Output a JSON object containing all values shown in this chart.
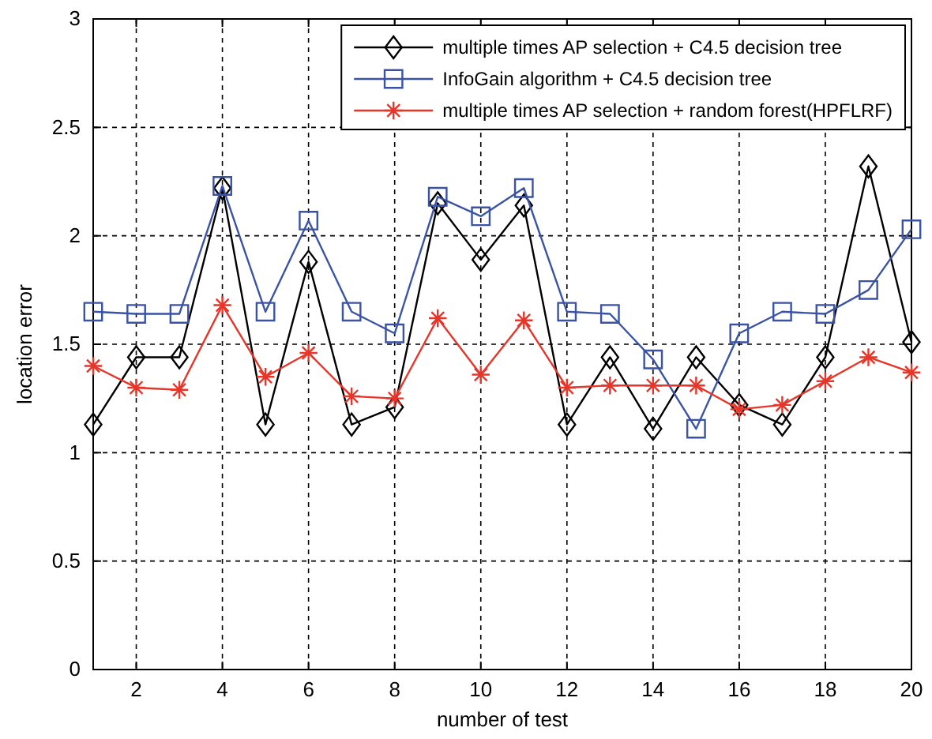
{
  "chart_data": {
    "type": "line",
    "xlabel": "number of test",
    "ylabel": "location error",
    "x": [
      1,
      2,
      3,
      4,
      5,
      6,
      7,
      8,
      9,
      10,
      11,
      12,
      13,
      14,
      15,
      16,
      17,
      18,
      19,
      20
    ],
    "series": [
      {
        "name": "multiple times AP selection + C4.5 decision tree",
        "color": "#000000",
        "marker": "diamond",
        "values": [
          1.13,
          1.44,
          1.44,
          2.22,
          1.13,
          1.88,
          1.13,
          1.21,
          2.15,
          1.89,
          2.14,
          1.13,
          1.44,
          1.11,
          1.44,
          1.22,
          1.13,
          1.44,
          2.32,
          1.51
        ]
      },
      {
        "name": "InfoGain algorithm + C4.5 decision tree",
        "color": "#3a53a4",
        "marker": "square",
        "values": [
          1.65,
          1.64,
          1.64,
          2.23,
          1.65,
          2.07,
          1.65,
          1.55,
          2.18,
          2.09,
          2.22,
          1.65,
          1.64,
          1.43,
          1.11,
          1.55,
          1.65,
          1.64,
          1.75,
          2.03
        ]
      },
      {
        "name": "multiple times AP selection + random forest(HPFLRF)",
        "color": "#e8352a",
        "marker": "cross",
        "values": [
          1.4,
          1.3,
          1.29,
          1.68,
          1.35,
          1.46,
          1.26,
          1.25,
          1.62,
          1.36,
          1.61,
          1.3,
          1.31,
          1.31,
          1.31,
          1.2,
          1.22,
          1.33,
          1.44,
          1.37
        ]
      }
    ],
    "xlim": [
      1,
      20
    ],
    "xticks": [
      2,
      4,
      6,
      8,
      10,
      12,
      14,
      16,
      18,
      20
    ],
    "ylim": [
      0,
      3
    ],
    "yticks": [
      0,
      0.5,
      1,
      1.5,
      2,
      2.5,
      3
    ],
    "grid": true,
    "legend": "top right",
    "line_style": "solid"
  }
}
